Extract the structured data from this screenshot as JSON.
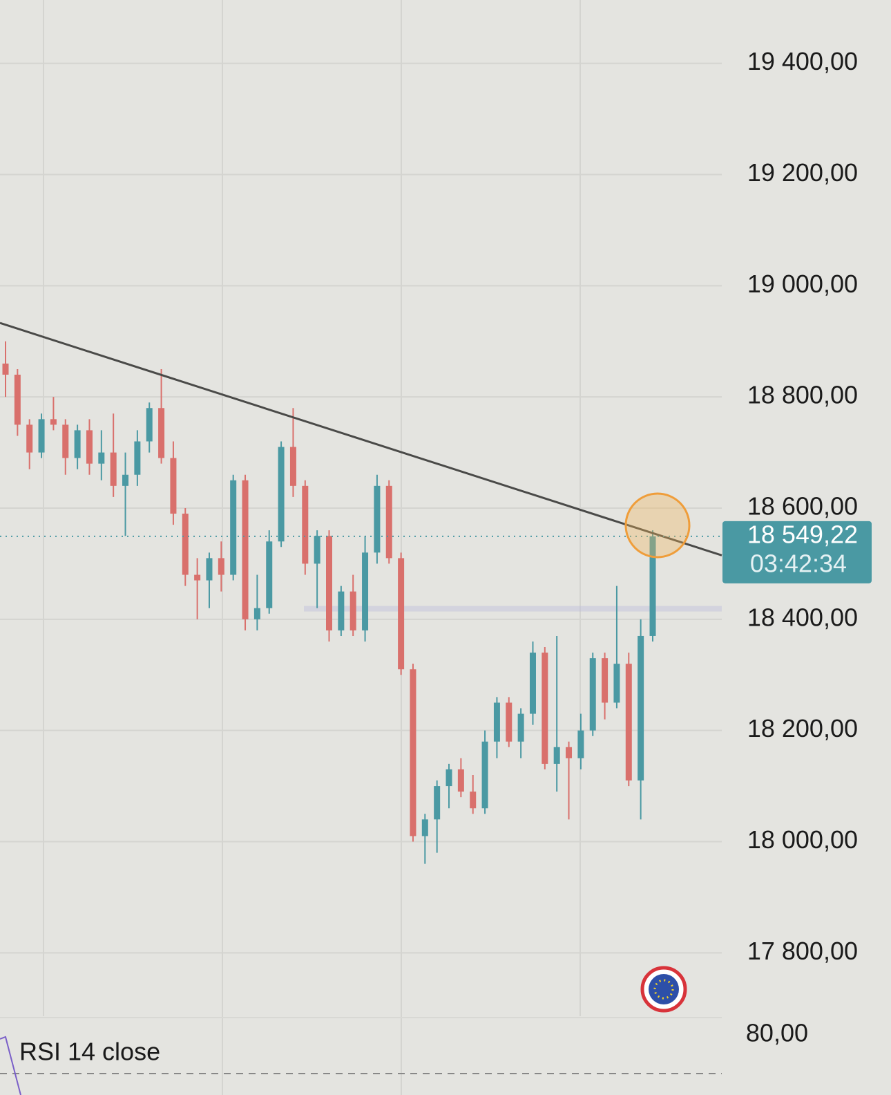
{
  "chart_data": {
    "type": "candlestick",
    "up_color": "#4a99a3",
    "down_color": "#d9706c",
    "ylim": [
      17686,
      19514
    ],
    "yticks": [
      {
        "value": 17800,
        "label": "17 800,00"
      },
      {
        "value": 18000,
        "label": "18 000,00"
      },
      {
        "value": 18200,
        "label": "18 200,00"
      },
      {
        "value": 18400,
        "label": "18 400,00"
      },
      {
        "value": 18600,
        "label": "18 600,00"
      },
      {
        "value": 18800,
        "label": "18 800,00"
      },
      {
        "value": 19000,
        "label": "19 000,00"
      },
      {
        "value": 19200,
        "label": "19 200,00"
      },
      {
        "value": 19400,
        "label": "19 400,00"
      }
    ],
    "grid": true,
    "open": [
      18860,
      18840,
      18750,
      18700,
      18760,
      18750,
      18690,
      18740,
      18680,
      18700,
      18640,
      18660,
      18720,
      18780,
      18690,
      18590,
      18480,
      18470,
      18510,
      18480,
      18650,
      18400,
      18420,
      18540,
      18710,
      18640,
      18500,
      18550,
      18380,
      18450,
      18380,
      18520,
      18640,
      18510,
      18310,
      18010,
      18040,
      18100,
      18130,
      18090,
      18060,
      18180,
      18250,
      18180,
      18230,
      18340,
      18140,
      18170,
      18150,
      18200,
      18330,
      18250,
      18320,
      18110,
      18370
    ],
    "high": [
      18900,
      18850,
      18760,
      18770,
      18800,
      18760,
      18750,
      18760,
      18740,
      18770,
      18700,
      18740,
      18790,
      18850,
      18720,
      18600,
      18510,
      18520,
      18540,
      18660,
      18660,
      18480,
      18560,
      18720,
      18780,
      18650,
      18560,
      18560,
      18460,
      18480,
      18550,
      18660,
      18650,
      18520,
      18320,
      18050,
      18110,
      18140,
      18150,
      18120,
      18200,
      18260,
      18260,
      18240,
      18360,
      18350,
      18370,
      18180,
      18230,
      18340,
      18340,
      18460,
      18340,
      18400,
      18560
    ],
    "low": [
      18800,
      18730,
      18670,
      18690,
      18740,
      18660,
      18670,
      18660,
      18650,
      18620,
      18550,
      18640,
      18700,
      18680,
      18570,
      18460,
      18400,
      18420,
      18450,
      18470,
      18380,
      18380,
      18410,
      18530,
      18620,
      18480,
      18420,
      18360,
      18370,
      18370,
      18360,
      18500,
      18500,
      18300,
      18000,
      17960,
      17980,
      18060,
      18080,
      18050,
      18050,
      18150,
      18170,
      18150,
      18210,
      18130,
      18090,
      18040,
      18130,
      18190,
      18220,
      18240,
      18100,
      18040,
      18360
    ],
    "close": [
      18840,
      18750,
      18700,
      18760,
      18750,
      18690,
      18740,
      18680,
      18700,
      18640,
      18660,
      18720,
      18780,
      18690,
      18590,
      18480,
      18470,
      18510,
      18480,
      18650,
      18400,
      18420,
      18540,
      18710,
      18640,
      18500,
      18550,
      18380,
      18450,
      18380,
      18520,
      18640,
      18510,
      18310,
      18010,
      18040,
      18100,
      18130,
      18090,
      18060,
      18180,
      18250,
      18180,
      18230,
      18340,
      18140,
      18170,
      18150,
      18200,
      18330,
      18250,
      18320,
      18110,
      18370,
      18549.22
    ],
    "trendline": {
      "start": 18933,
      "end": 18515
    },
    "zone": 18419,
    "last_price": {
      "value": 18549.22,
      "label": "18 549,22"
    },
    "countdown": "03:42:34",
    "rsi": {
      "label": "RSI 14 close",
      "yticks": [
        {
          "value": 80,
          "label": "80,00"
        }
      ]
    }
  }
}
